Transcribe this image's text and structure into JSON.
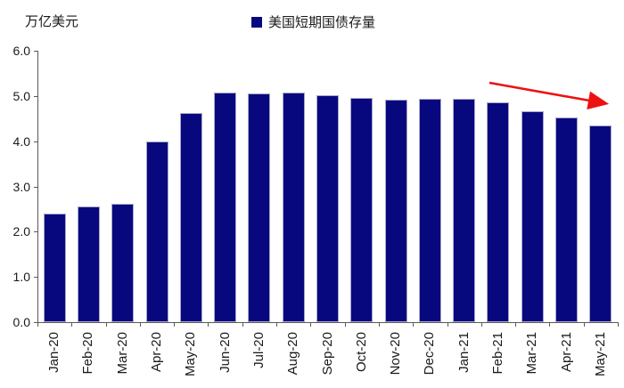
{
  "header": {
    "unit_label": "万亿美元"
  },
  "legend": {
    "label": "美国短期国债存量",
    "swatch_color": "#08087E"
  },
  "chart_data": {
    "type": "bar",
    "title": "",
    "ylabel": "万亿美元",
    "xlabel": "",
    "series_name": "美国短期国债存量",
    "categories": [
      "Jan-20",
      "Feb-20",
      "Mar-20",
      "Apr-20",
      "May-20",
      "Jun-20",
      "Jul-20",
      "Aug-20",
      "Sep-20",
      "Oct-20",
      "Nov-20",
      "Dec-20",
      "Jan-21",
      "Feb-21",
      "Mar-21",
      "Apr-21",
      "May-21"
    ],
    "values": [
      2.4,
      2.55,
      2.62,
      4.0,
      4.62,
      5.07,
      5.06,
      5.07,
      5.02,
      4.96,
      4.92,
      4.94,
      4.93,
      4.85,
      4.66,
      4.52,
      4.35
    ],
    "ylim": [
      0,
      6
    ],
    "yticks": [
      "0.0",
      "1.0",
      "2.0",
      "3.0",
      "4.0",
      "5.0",
      "6.0"
    ],
    "grid": false,
    "legend_position": "top-center",
    "bar_color": "#08087E",
    "bar_border_color": "#a9a9c9",
    "axis_color": "#595959",
    "annotation": {
      "type": "arrow",
      "color": "#EE1111",
      "from_category": "Feb-21",
      "to_category": "May-21",
      "direction": "down-right"
    }
  }
}
